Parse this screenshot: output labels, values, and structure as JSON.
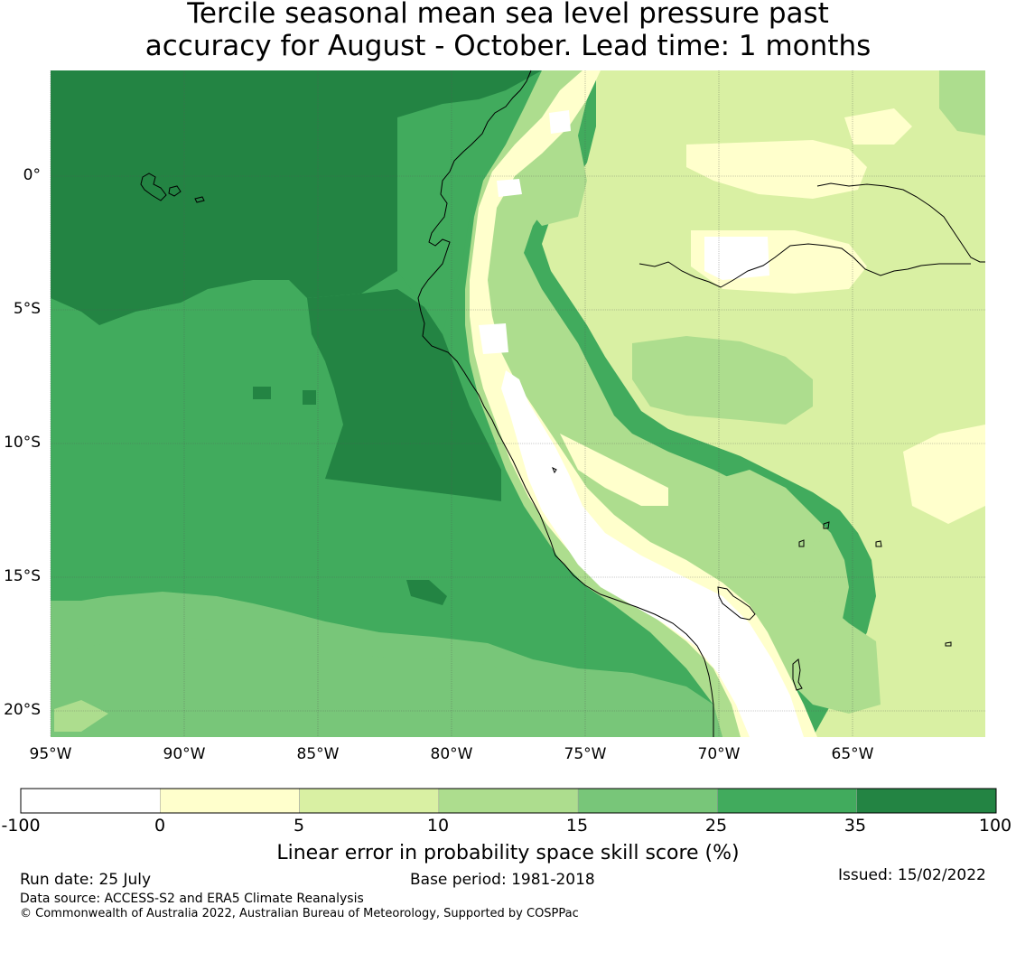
{
  "title": {
    "line1": "Tercile seasonal mean sea level pressure past",
    "line2": "accuracy for August - October. Lead time: 1 months"
  },
  "map": {
    "lat_labels": [
      "0°",
      "5°S",
      "10°S",
      "15°S",
      "20°S"
    ],
    "lon_labels": [
      "95°W",
      "90°W",
      "85°W",
      "80°W",
      "75°W",
      "70°W",
      "65°W"
    ],
    "colors": {
      "neg": "#ffffff",
      "c0_5": "#ffffcc",
      "c5_10": "#d9f0a3",
      "c10_15": "#addd8e",
      "c15_25": "#78c679",
      "c25_35": "#41ab5d",
      "c35_100": "#238443",
      "coast": "#000000",
      "grid": "#555555"
    }
  },
  "colorbar": {
    "ticks": [
      "-100",
      "0",
      "5",
      "10",
      "15",
      "25",
      "35",
      "100"
    ],
    "colors": [
      "#ffffff",
      "#ffffcc",
      "#d9f0a3",
      "#addd8e",
      "#78c679",
      "#41ab5d",
      "#238443"
    ],
    "label": "Linear error in probability space skill score (%)"
  },
  "footer": {
    "run_date": "Run date: 25 July",
    "base_period": "Base period: 1981-2018",
    "issued": "Issued: 15/02/2022",
    "data_source": "Data source: ACCESS-S2 and ERA5 Climate Reanalysis",
    "copyright": "© Commonwealth of Australia 2022, Australian Bureau of Meteorology, Supported by COSPPac"
  }
}
